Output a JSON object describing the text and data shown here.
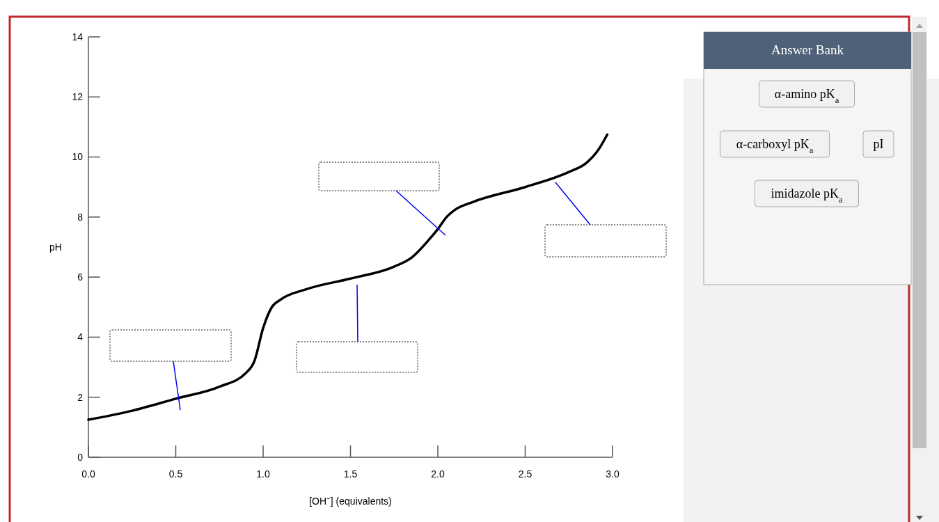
{
  "chart_data": [
    {
      "type": "line",
      "xlabel": "[OH$^{−}$] (equivalents)",
      "ylabel": "pH",
      "xlim": [
        0,
        3
      ],
      "ylim": [
        0,
        14
      ],
      "xticks": [
        {
          "value": 0,
          "label": "0.0"
        },
        {
          "value": 0.5,
          "label": "0.5"
        },
        {
          "value": 1,
          "label": "1.0"
        },
        {
          "value": 1.5,
          "label": "1.5"
        },
        {
          "value": 2,
          "label": "2.0"
        },
        {
          "value": 2.5,
          "label": "2.5"
        },
        {
          "value": 3,
          "label": "3.0"
        }
      ],
      "yticks": [
        0,
        2,
        4,
        6,
        8,
        10,
        12,
        14
      ],
      "series": [
        {
          "color": "#000000",
          "x": [
            0,
            0.25,
            0.5,
            0.75,
            0.9,
            0.95,
            1.0,
            1.05,
            1.1,
            1.25,
            1.5,
            1.75,
            1.85,
            1.95,
            2.0,
            2.05,
            2.1,
            2.2,
            2.5,
            2.75,
            2.85,
            2.92,
            2.97
          ],
          "values": [
            1.25,
            1.55,
            1.95,
            2.35,
            2.8,
            3.2,
            4.3,
            5.0,
            5.25,
            5.6,
            5.95,
            6.35,
            6.65,
            7.25,
            7.6,
            8.0,
            8.25,
            8.5,
            9.0,
            9.5,
            9.8,
            10.25,
            10.75
          ]
        }
      ]
    },
    {
      "type": "other",
      "title": "Answer Bank",
      "annotations": [
        "α-amino pK$_{a}$",
        "α-carboxyl pK$_{a}$",
        "pI",
        "imidazole pK$_{a}$"
      ]
    }
  ]
}
